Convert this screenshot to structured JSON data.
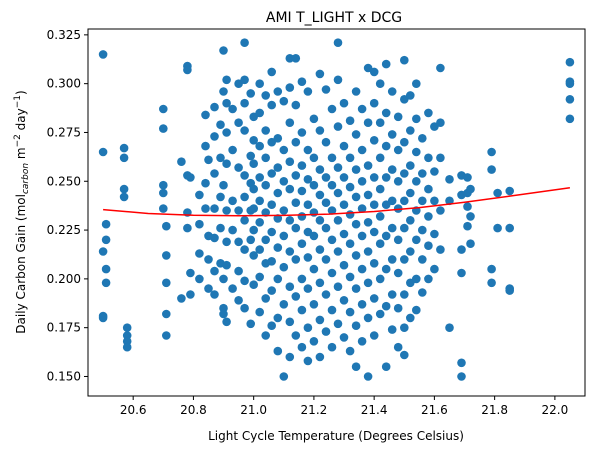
{
  "chart_data": {
    "type": "scatter",
    "title": "AMI T_LIGHT x DCG",
    "xlabel": "Light Cycle Temperature (Degrees Celsius)",
    "ylabel_main": "Daily Carbon Gain (mol",
    "ylabel_sub": "carbon",
    "ylabel_mid": " m",
    "ylabel_sup1": "−2",
    "ylabel_mid2": " day",
    "ylabel_sup2": "−1",
    "ylabel_end": ")",
    "xlim": [
      20.45,
      22.1
    ],
    "ylim": [
      0.14,
      0.328
    ],
    "xticks": [
      20.6,
      20.8,
      21.0,
      21.2,
      21.4,
      21.6,
      21.8,
      22.0
    ],
    "xtick_labels": [
      "20.6",
      "20.8",
      "21.0",
      "21.2",
      "21.4",
      "21.6",
      "21.8",
      "22.0"
    ],
    "yticks": [
      0.15,
      0.175,
      0.2,
      0.225,
      0.25,
      0.275,
      0.3,
      0.325
    ],
    "ytick_labels": [
      "0.150",
      "0.175",
      "0.200",
      "0.225",
      "0.250",
      "0.275",
      "0.300",
      "0.325"
    ],
    "grid": false,
    "point_color": "#1f77b4",
    "fit_color": "#ff0000",
    "fit_line": {
      "x": [
        20.5,
        20.65,
        20.8,
        20.95,
        21.1,
        21.25,
        21.4,
        21.55,
        21.7,
        21.85,
        22.05
      ],
      "y": [
        0.2355,
        0.2335,
        0.2326,
        0.2323,
        0.2325,
        0.2332,
        0.2345,
        0.2365,
        0.2392,
        0.2424,
        0.2467
      ]
    },
    "points": [
      [
        20.5,
        0.315
      ],
      [
        20.5,
        0.265
      ],
      [
        20.5,
        0.214
      ],
      [
        20.5,
        0.181
      ],
      [
        20.5,
        0.18
      ],
      [
        20.51,
        0.228
      ],
      [
        20.51,
        0.22
      ],
      [
        20.51,
        0.205
      ],
      [
        20.51,
        0.198
      ],
      [
        20.57,
        0.267
      ],
      [
        20.57,
        0.262
      ],
      [
        20.57,
        0.246
      ],
      [
        20.57,
        0.242
      ],
      [
        20.58,
        0.175
      ],
      [
        20.58,
        0.171
      ],
      [
        20.58,
        0.168
      ],
      [
        20.58,
        0.165
      ],
      [
        20.7,
        0.287
      ],
      [
        20.7,
        0.277
      ],
      [
        20.7,
        0.248
      ],
      [
        20.7,
        0.244
      ],
      [
        20.7,
        0.236
      ],
      [
        20.71,
        0.227
      ],
      [
        20.71,
        0.212
      ],
      [
        20.71,
        0.198
      ],
      [
        20.71,
        0.182
      ],
      [
        20.71,
        0.171
      ],
      [
        20.76,
        0.26
      ],
      [
        20.76,
        0.19
      ],
      [
        20.78,
        0.309
      ],
      [
        20.78,
        0.307
      ],
      [
        20.78,
        0.253
      ],
      [
        20.78,
        0.234
      ],
      [
        20.78,
        0.226
      ],
      [
        20.79,
        0.252
      ],
      [
        20.79,
        0.203
      ],
      [
        20.79,
        0.192
      ],
      [
        20.82,
        0.243
      ],
      [
        20.82,
        0.228
      ],
      [
        20.82,
        0.213
      ],
      [
        20.82,
        0.2
      ],
      [
        20.84,
        0.284
      ],
      [
        20.84,
        0.268
      ],
      [
        20.84,
        0.249
      ],
      [
        20.84,
        0.236
      ],
      [
        20.85,
        0.261
      ],
      [
        20.85,
        0.222
      ],
      [
        20.85,
        0.21
      ],
      [
        20.85,
        0.195
      ],
      [
        20.87,
        0.288
      ],
      [
        20.87,
        0.273
      ],
      [
        20.87,
        0.254
      ],
      [
        20.87,
        0.236
      ],
      [
        20.87,
        0.221
      ],
      [
        20.87,
        0.204
      ],
      [
        20.87,
        0.192
      ],
      [
        20.89,
        0.279
      ],
      [
        20.89,
        0.262
      ],
      [
        20.89,
        0.242
      ],
      [
        20.89,
        0.226
      ],
      [
        20.89,
        0.208
      ],
      [
        20.9,
        0.317
      ],
      [
        20.9,
        0.296
      ],
      [
        20.9,
        0.248
      ],
      [
        20.9,
        0.2
      ],
      [
        20.9,
        0.185
      ],
      [
        20.9,
        0.182
      ],
      [
        20.91,
        0.302
      ],
      [
        20.91,
        0.29
      ],
      [
        20.91,
        0.275
      ],
      [
        20.91,
        0.259
      ],
      [
        20.91,
        0.235
      ],
      [
        20.91,
        0.219
      ],
      [
        20.91,
        0.207
      ],
      [
        20.91,
        0.178
      ],
      [
        20.93,
        0.287
      ],
      [
        20.93,
        0.266
      ],
      [
        20.93,
        0.24
      ],
      [
        20.93,
        0.225
      ],
      [
        20.93,
        0.195
      ],
      [
        20.95,
        0.3
      ],
      [
        20.95,
        0.28
      ],
      [
        20.95,
        0.257
      ],
      [
        20.95,
        0.235
      ],
      [
        20.95,
        0.219
      ],
      [
        20.95,
        0.204
      ],
      [
        20.95,
        0.189
      ],
      [
        20.97,
        0.321
      ],
      [
        20.97,
        0.302
      ],
      [
        20.97,
        0.29
      ],
      [
        20.97,
        0.276
      ],
      [
        20.97,
        0.253
      ],
      [
        20.97,
        0.242
      ],
      [
        20.97,
        0.23
      ],
      [
        20.97,
        0.215
      ],
      [
        20.97,
        0.199
      ],
      [
        20.97,
        0.185
      ],
      [
        20.99,
        0.295
      ],
      [
        20.99,
        0.263
      ],
      [
        20.99,
        0.249
      ],
      [
        20.99,
        0.235
      ],
      [
        20.99,
        0.22
      ],
      [
        20.99,
        0.177
      ],
      [
        21.0,
        0.283
      ],
      [
        21.0,
        0.271
      ],
      [
        21.0,
        0.259
      ],
      [
        21.0,
        0.246
      ],
      [
        21.0,
        0.236
      ],
      [
        21.0,
        0.225
      ],
      [
        21.0,
        0.212
      ],
      [
        21.0,
        0.197
      ],
      [
        21.02,
        0.3
      ],
      [
        21.02,
        0.285
      ],
      [
        21.02,
        0.268
      ],
      [
        21.02,
        0.252
      ],
      [
        21.02,
        0.24
      ],
      [
        21.02,
        0.229
      ],
      [
        21.02,
        0.215
      ],
      [
        21.02,
        0.201
      ],
      [
        21.02,
        0.183
      ],
      [
        21.04,
        0.294
      ],
      [
        21.04,
        0.276
      ],
      [
        21.04,
        0.262
      ],
      [
        21.04,
        0.248
      ],
      [
        21.04,
        0.234
      ],
      [
        21.04,
        0.22
      ],
      [
        21.04,
        0.208
      ],
      [
        21.04,
        0.19
      ],
      [
        21.04,
        0.171
      ],
      [
        21.06,
        0.306
      ],
      [
        21.06,
        0.289
      ],
      [
        21.06,
        0.27
      ],
      [
        21.06,
        0.254
      ],
      [
        21.06,
        0.238
      ],
      [
        21.06,
        0.224
      ],
      [
        21.06,
        0.209
      ],
      [
        21.06,
        0.194
      ],
      [
        21.06,
        0.176
      ],
      [
        21.08,
        0.296
      ],
      [
        21.08,
        0.272
      ],
      [
        21.08,
        0.257
      ],
      [
        21.08,
        0.244
      ],
      [
        21.08,
        0.231
      ],
      [
        21.08,
        0.216
      ],
      [
        21.08,
        0.2
      ],
      [
        21.08,
        0.18
      ],
      [
        21.08,
        0.163
      ],
      [
        21.1,
        0.291
      ],
      [
        21.1,
        0.266
      ],
      [
        21.1,
        0.25
      ],
      [
        21.1,
        0.235
      ],
      [
        21.1,
        0.222
      ],
      [
        21.1,
        0.206
      ],
      [
        21.1,
        0.187
      ],
      [
        21.1,
        0.15
      ],
      [
        21.12,
        0.313
      ],
      [
        21.12,
        0.298
      ],
      [
        21.12,
        0.28
      ],
      [
        21.12,
        0.26
      ],
      [
        21.12,
        0.246
      ],
      [
        21.12,
        0.23
      ],
      [
        21.12,
        0.214
      ],
      [
        21.12,
        0.196
      ],
      [
        21.12,
        0.178
      ],
      [
        21.12,
        0.16
      ],
      [
        21.14,
        0.313
      ],
      [
        21.14,
        0.289
      ],
      [
        21.14,
        0.27
      ],
      [
        21.14,
        0.253
      ],
      [
        21.14,
        0.239
      ],
      [
        21.14,
        0.226
      ],
      [
        21.14,
        0.21
      ],
      [
        21.14,
        0.191
      ],
      [
        21.14,
        0.171
      ],
      [
        21.16,
        0.301
      ],
      [
        21.16,
        0.275
      ],
      [
        21.16,
        0.258
      ],
      [
        21.16,
        0.245
      ],
      [
        21.16,
        0.232
      ],
      [
        21.16,
        0.218
      ],
      [
        21.16,
        0.2
      ],
      [
        21.16,
        0.184
      ],
      [
        21.16,
        0.165
      ],
      [
        21.18,
        0.296
      ],
      [
        21.18,
        0.266
      ],
      [
        21.18,
        0.251
      ],
      [
        21.18,
        0.238
      ],
      [
        21.18,
        0.224
      ],
      [
        21.18,
        0.211
      ],
      [
        21.18,
        0.195
      ],
      [
        21.18,
        0.175
      ],
      [
        21.18,
        0.158
      ],
      [
        21.2,
        0.282
      ],
      [
        21.2,
        0.262
      ],
      [
        21.2,
        0.248
      ],
      [
        21.2,
        0.234
      ],
      [
        21.2,
        0.222
      ],
      [
        21.2,
        0.205
      ],
      [
        21.2,
        0.187
      ],
      [
        21.2,
        0.168
      ],
      [
        21.22,
        0.305
      ],
      [
        21.22,
        0.276
      ],
      [
        21.22,
        0.256
      ],
      [
        21.22,
        0.243
      ],
      [
        21.22,
        0.23
      ],
      [
        21.22,
        0.215
      ],
      [
        21.22,
        0.198
      ],
      [
        21.22,
        0.179
      ],
      [
        21.22,
        0.16
      ],
      [
        21.24,
        0.297
      ],
      [
        21.24,
        0.27
      ],
      [
        21.24,
        0.252
      ],
      [
        21.24,
        0.239
      ],
      [
        21.24,
        0.226
      ],
      [
        21.24,
        0.21
      ],
      [
        21.24,
        0.192
      ],
      [
        21.24,
        0.173
      ],
      [
        21.26,
        0.287
      ],
      [
        21.26,
        0.262
      ],
      [
        21.26,
        0.248
      ],
      [
        21.26,
        0.235
      ],
      [
        21.26,
        0.22
      ],
      [
        21.26,
        0.203
      ],
      [
        21.26,
        0.184
      ],
      [
        21.26,
        0.165
      ],
      [
        21.28,
        0.321
      ],
      [
        21.28,
        0.302
      ],
      [
        21.28,
        0.278
      ],
      [
        21.28,
        0.257
      ],
      [
        21.28,
        0.244
      ],
      [
        21.28,
        0.23
      ],
      [
        21.28,
        0.214
      ],
      [
        21.28,
        0.196
      ],
      [
        21.28,
        0.177
      ],
      [
        21.3,
        0.29
      ],
      [
        21.3,
        0.268
      ],
      [
        21.3,
        0.252
      ],
      [
        21.3,
        0.238
      ],
      [
        21.3,
        0.223
      ],
      [
        21.3,
        0.207
      ],
      [
        21.3,
        0.189
      ],
      [
        21.3,
        0.17
      ],
      [
        21.32,
        0.281
      ],
      [
        21.32,
        0.262
      ],
      [
        21.32,
        0.247
      ],
      [
        21.32,
        0.233
      ],
      [
        21.32,
        0.218
      ],
      [
        21.32,
        0.201
      ],
      [
        21.32,
        0.183
      ],
      [
        21.32,
        0.163
      ],
      [
        21.34,
        0.296
      ],
      [
        21.34,
        0.274
      ],
      [
        21.34,
        0.256
      ],
      [
        21.34,
        0.242
      ],
      [
        21.34,
        0.228
      ],
      [
        21.34,
        0.212
      ],
      [
        21.34,
        0.195
      ],
      [
        21.34,
        0.176
      ],
      [
        21.34,
        0.155
      ],
      [
        21.36,
        0.287
      ],
      [
        21.36,
        0.266
      ],
      [
        21.36,
        0.25
      ],
      [
        21.36,
        0.236
      ],
      [
        21.36,
        0.222
      ],
      [
        21.36,
        0.205
      ],
      [
        21.36,
        0.187
      ],
      [
        21.36,
        0.168
      ],
      [
        21.38,
        0.308
      ],
      [
        21.38,
        0.28
      ],
      [
        21.38,
        0.258
      ],
      [
        21.38,
        0.243
      ],
      [
        21.38,
        0.229
      ],
      [
        21.38,
        0.214
      ],
      [
        21.38,
        0.198
      ],
      [
        21.38,
        0.18
      ],
      [
        21.38,
        0.15
      ],
      [
        21.4,
        0.306
      ],
      [
        21.4,
        0.29
      ],
      [
        21.4,
        0.271
      ],
      [
        21.4,
        0.252
      ],
      [
        21.4,
        0.238
      ],
      [
        21.4,
        0.224
      ],
      [
        21.4,
        0.208
      ],
      [
        21.4,
        0.19
      ],
      [
        21.4,
        0.171
      ],
      [
        21.42,
        0.3
      ],
      [
        21.42,
        0.28
      ],
      [
        21.42,
        0.262
      ],
      [
        21.42,
        0.246
      ],
      [
        21.42,
        0.232
      ],
      [
        21.42,
        0.218
      ],
      [
        21.42,
        0.2
      ],
      [
        21.42,
        0.182
      ],
      [
        21.44,
        0.31
      ],
      [
        21.44,
        0.285
      ],
      [
        21.44,
        0.268
      ],
      [
        21.44,
        0.252
      ],
      [
        21.44,
        0.238
      ],
      [
        21.44,
        0.222
      ],
      [
        21.44,
        0.205
      ],
      [
        21.44,
        0.186
      ],
      [
        21.44,
        0.155
      ],
      [
        21.46,
        0.296
      ],
      [
        21.46,
        0.274
      ],
      [
        21.46,
        0.256
      ],
      [
        21.46,
        0.24
      ],
      [
        21.46,
        0.226
      ],
      [
        21.46,
        0.21
      ],
      [
        21.46,
        0.192
      ],
      [
        21.46,
        0.174
      ],
      [
        21.48,
        0.283
      ],
      [
        21.48,
        0.266
      ],
      [
        21.48,
        0.25
      ],
      [
        21.48,
        0.236
      ],
      [
        21.48,
        0.22
      ],
      [
        21.48,
        0.203
      ],
      [
        21.48,
        0.185
      ],
      [
        21.48,
        0.165
      ],
      [
        21.5,
        0.312
      ],
      [
        21.5,
        0.292
      ],
      [
        21.5,
        0.27
      ],
      [
        21.5,
        0.254
      ],
      [
        21.5,
        0.24
      ],
      [
        21.5,
        0.226
      ],
      [
        21.5,
        0.21
      ],
      [
        21.5,
        0.192
      ],
      [
        21.5,
        0.175
      ],
      [
        21.5,
        0.161
      ],
      [
        21.52,
        0.294
      ],
      [
        21.52,
        0.276
      ],
      [
        21.52,
        0.258
      ],
      [
        21.52,
        0.244
      ],
      [
        21.52,
        0.23
      ],
      [
        21.52,
        0.214
      ],
      [
        21.52,
        0.198
      ],
      [
        21.52,
        0.18
      ],
      [
        21.54,
        0.3
      ],
      [
        21.54,
        0.282
      ],
      [
        21.54,
        0.265
      ],
      [
        21.54,
        0.25
      ],
      [
        21.54,
        0.235
      ],
      [
        21.54,
        0.22
      ],
      [
        21.54,
        0.2
      ],
      [
        21.54,
        0.184
      ],
      [
        21.56,
        0.272
      ],
      [
        21.56,
        0.254
      ],
      [
        21.56,
        0.24
      ],
      [
        21.56,
        0.225
      ],
      [
        21.56,
        0.21
      ],
      [
        21.56,
        0.193
      ],
      [
        21.58,
        0.285
      ],
      [
        21.58,
        0.262
      ],
      [
        21.58,
        0.246
      ],
      [
        21.58,
        0.232
      ],
      [
        21.58,
        0.217
      ],
      [
        21.58,
        0.2
      ],
      [
        21.6,
        0.278
      ],
      [
        21.6,
        0.255
      ],
      [
        21.6,
        0.24
      ],
      [
        21.6,
        0.223
      ],
      [
        21.6,
        0.205
      ],
      [
        21.62,
        0.308
      ],
      [
        21.62,
        0.28
      ],
      [
        21.62,
        0.262
      ],
      [
        21.62,
        0.235
      ],
      [
        21.62,
        0.215
      ],
      [
        21.65,
        0.251
      ],
      [
        21.65,
        0.24
      ],
      [
        21.65,
        0.175
      ],
      [
        21.69,
        0.253
      ],
      [
        21.69,
        0.243
      ],
      [
        21.69,
        0.215
      ],
      [
        21.69,
        0.203
      ],
      [
        21.69,
        0.157
      ],
      [
        21.69,
        0.15
      ],
      [
        21.71,
        0.252
      ],
      [
        21.71,
        0.244
      ],
      [
        21.71,
        0.237
      ],
      [
        21.71,
        0.227
      ],
      [
        21.72,
        0.246
      ],
      [
        21.72,
        0.232
      ],
      [
        21.72,
        0.218
      ],
      [
        21.79,
        0.265
      ],
      [
        21.79,
        0.256
      ],
      [
        21.79,
        0.205
      ],
      [
        21.79,
        0.198
      ],
      [
        21.81,
        0.244
      ],
      [
        21.81,
        0.226
      ],
      [
        21.85,
        0.245
      ],
      [
        21.85,
        0.226
      ],
      [
        21.85,
        0.195
      ],
      [
        21.85,
        0.194
      ],
      [
        22.05,
        0.311
      ],
      [
        22.05,
        0.301
      ],
      [
        22.05,
        0.3
      ],
      [
        22.05,
        0.292
      ],
      [
        22.05,
        0.282
      ]
    ]
  }
}
